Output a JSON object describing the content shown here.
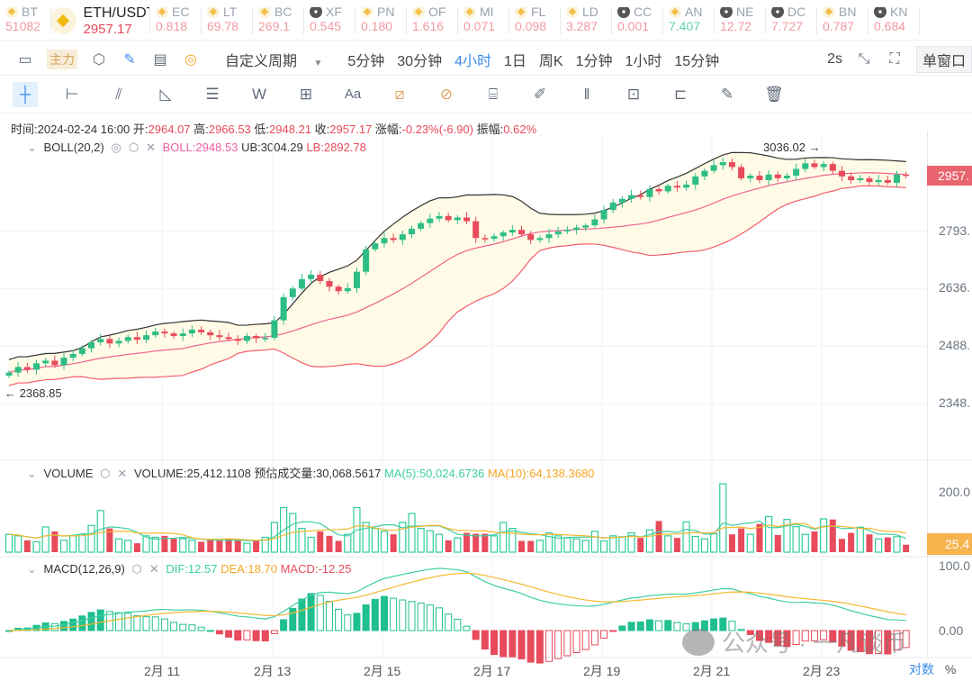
{
  "tickers": [
    {
      "sym": "BT",
      "price": "51082",
      "icon": "bnb"
    },
    {
      "sym": "ETH/USDT",
      "price": "2957.17",
      "icon": "bnb",
      "main": true
    },
    {
      "sym": "EC",
      "price": "0.818",
      "icon": "bnb"
    },
    {
      "sym": "LT",
      "price": "69.78",
      "icon": "bnb"
    },
    {
      "sym": "BC",
      "price": "269.1",
      "icon": "bnb"
    },
    {
      "sym": "XF",
      "price": "0.545",
      "icon": "x"
    },
    {
      "sym": "PN",
      "price": "0.180",
      "icon": "bnb"
    },
    {
      "sym": "OF",
      "price": "1.616",
      "icon": "bnb"
    },
    {
      "sym": "MI",
      "price": "0.071",
      "icon": "bnb"
    },
    {
      "sym": "FL",
      "price": "0.098",
      "icon": "bnb"
    },
    {
      "sym": "LD",
      "price": "3.287",
      "icon": "bnb"
    },
    {
      "sym": "CC",
      "price": "0.001",
      "icon": "x"
    },
    {
      "sym": "AN",
      "price": "7.407",
      "icon": "bnb",
      "up": true
    },
    {
      "sym": "NE",
      "price": "12.72",
      "icon": "x"
    },
    {
      "sym": "DC",
      "price": "7.727",
      "icon": "x"
    },
    {
      "sym": "BN",
      "price": "0.787",
      "icon": "bnb"
    },
    {
      "sym": "KN",
      "price": "0.684",
      "icon": "x"
    }
  ],
  "toolbar": {
    "main_force": "主力",
    "custom_period": "自定义周期",
    "periods": [
      "5分钟",
      "30分钟",
      "4小时",
      "1日",
      "周K",
      "1分钟",
      "1小时",
      "15分钟"
    ],
    "active_period": "4小时",
    "refresh": "2s",
    "window_mode": "单窗口"
  },
  "info": {
    "time_label": "时间:",
    "time": "2024-02-24 16:00",
    "open_label": "开:",
    "open": "2964.07",
    "high_label": "高:",
    "high": "2966.53",
    "low_label": "低:",
    "low": "2948.21",
    "close_label": "收:",
    "close": "2957.17",
    "change_label": "涨幅:",
    "change": "-0.23%(-6.90)",
    "amp_label": "振幅:",
    "amp": "0.62%"
  },
  "boll": {
    "name": "BOLL(20,2)",
    "boll": "BOLL:2948.53",
    "ub": "UB:3004.29",
    "lb": "LB:2892.78"
  },
  "volume": {
    "name": "VOLUME",
    "vol": "VOLUME:25,412.1108",
    "est": "预估成交量:30,068.5617",
    "ma5": "MA(5):50,024.6736",
    "ma10": "MA(10):64,138.3680",
    "tag": "25.4",
    "axis": [
      "200.0"
    ]
  },
  "macd": {
    "name": "MACD(12,26,9)",
    "dif": "DIF:12.57",
    "dea": "DEA:18.70",
    "macd": "MACD:-12.25",
    "axis": [
      "100.0",
      "0.00"
    ]
  },
  "price_axis": [
    "2793.",
    "2636.",
    "2488.",
    "2348."
  ],
  "price_tag": "2957.",
  "high_mark": "3036.02 →",
  "low_mark": "← 2368.85",
  "x_labels": [
    "2月 11",
    "2月 13",
    "2月 15",
    "2月 17",
    "2月 19",
    "2月 21",
    "2月 23"
  ],
  "bottom": {
    "log": "对数",
    "pct": "%"
  },
  "watermark": "公众号 · 一凡谈币",
  "colors": {
    "up": "#2ebd85",
    "down": "#e84b5b",
    "boll": "#f06292",
    "band": "#333",
    "fill": "#fffbe6"
  },
  "chart_data": {
    "type": "candlestick",
    "closes": [
      2430,
      2445,
      2438,
      2455,
      2462,
      2450,
      2470,
      2480,
      2495,
      2511,
      2520,
      2508,
      2515,
      2525,
      2518,
      2530,
      2540,
      2535,
      2528,
      2535,
      2545,
      2538,
      2530,
      2525,
      2520,
      2515,
      2528,
      2522,
      2523,
      2570,
      2632,
      2655,
      2680,
      2692,
      2675,
      2660,
      2648,
      2656,
      2700,
      2760,
      2776,
      2790,
      2785,
      2800,
      2815,
      2830,
      2842,
      2849,
      2838,
      2845,
      2835,
      2790,
      2788,
      2795,
      2805,
      2812,
      2800,
      2785,
      2790,
      2800,
      2808,
      2812,
      2818,
      2824,
      2840,
      2865,
      2885,
      2895,
      2905,
      2900,
      2921,
      2915,
      2930,
      2925,
      2933,
      2955,
      2970,
      2985,
      2993,
      2980,
      2950,
      2957,
      2945,
      2960,
      2950,
      2957,
      2975,
      2990,
      2980,
      2988,
      2970,
      2955,
      2945,
      2950,
      2940,
      2945,
      2938,
      2960,
      2957
    ],
    "volumes": [
      60,
      55,
      40,
      35,
      85,
      70,
      40,
      55,
      60,
      90,
      140,
      80,
      45,
      40,
      30,
      55,
      50,
      55,
      45,
      45,
      40,
      35,
      40,
      40,
      45,
      40,
      30,
      40,
      50,
      100,
      150,
      130,
      80,
      50,
      70,
      55,
      38,
      60,
      150,
      100,
      80,
      70,
      60,
      100,
      130,
      80,
      72,
      60,
      40,
      48,
      65,
      62,
      62,
      55,
      100,
      80,
      38,
      38,
      40,
      65,
      55,
      48,
      45,
      40,
      70,
      38,
      55,
      52,
      65,
      48,
      75,
      105,
      55,
      48,
      102,
      53,
      45,
      62,
      230,
      60,
      80,
      60,
      95,
      120,
      58,
      110,
      86,
      60,
      70,
      112,
      110,
      45,
      65,
      84,
      60,
      45,
      50,
      52,
      25
    ],
    "ylim": [
      2300,
      3060
    ]
  }
}
